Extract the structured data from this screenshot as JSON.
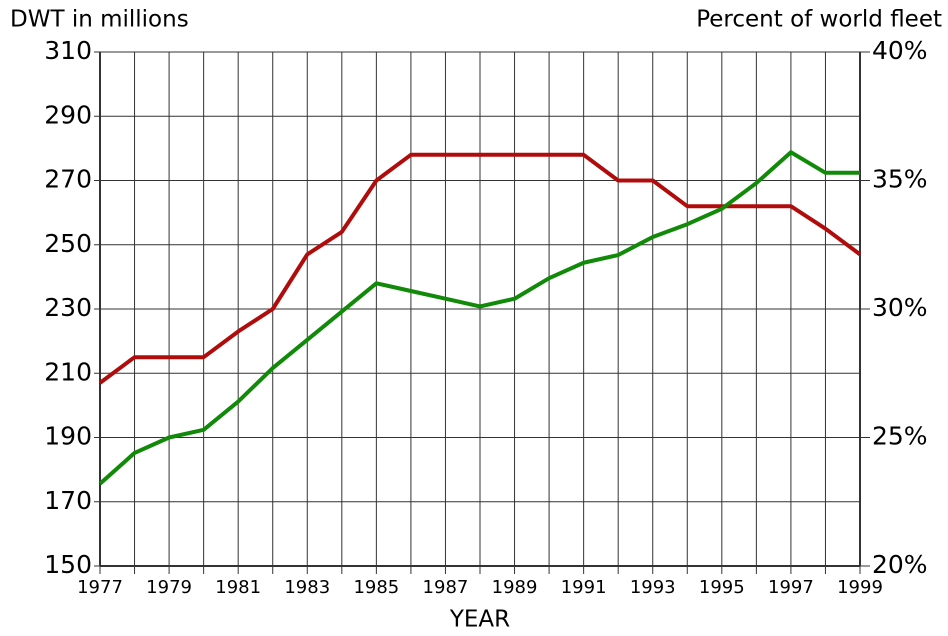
{
  "chart_data": {
    "type": "line",
    "ylabel": "DWT in millions",
    "y2label": "Percent of world fleet",
    "xlabel": "YEAR",
    "x": [
      1977,
      1978,
      1979,
      1980,
      1981,
      1982,
      1983,
      1984,
      1985,
      1986,
      1987,
      1988,
      1989,
      1990,
      1991,
      1992,
      1993,
      1994,
      1995,
      1996,
      1997,
      1998,
      1999
    ],
    "xlim": [
      1977,
      1999
    ],
    "xticks": [
      1977,
      1979,
      1981,
      1983,
      1985,
      1987,
      1989,
      1991,
      1993,
      1995,
      1997,
      1999
    ],
    "ylim": [
      150,
      310
    ],
    "yticks": [
      150,
      170,
      190,
      210,
      230,
      250,
      270,
      290,
      310
    ],
    "y2lim": [
      20,
      40
    ],
    "y2ticks": [
      {
        "value": 20,
        "label": "20%"
      },
      {
        "value": 25,
        "label": "25%"
      },
      {
        "value": 30,
        "label": "30%"
      },
      {
        "value": 35,
        "label": "35%"
      },
      {
        "value": 40,
        "label": "40%"
      }
    ],
    "grid": true,
    "series": [
      {
        "color": "#b00c0c",
        "values": [
          207,
          215,
          215,
          215,
          223,
          230,
          247,
          254,
          270,
          278,
          278,
          278,
          278,
          278,
          278,
          270,
          270,
          262,
          262,
          262,
          262,
          255,
          247
        ]
      },
      {
        "color": "#108a08",
        "axis": "y2",
        "values": [
          23.2,
          24.4,
          25.0,
          25.3,
          26.4,
          27.7,
          28.8,
          29.9,
          31.0,
          30.7,
          30.4,
          30.1,
          30.4,
          31.2,
          31.8,
          32.1,
          32.8,
          33.3,
          33.9,
          34.9,
          36.1,
          35.3,
          35.3
        ]
      }
    ]
  }
}
